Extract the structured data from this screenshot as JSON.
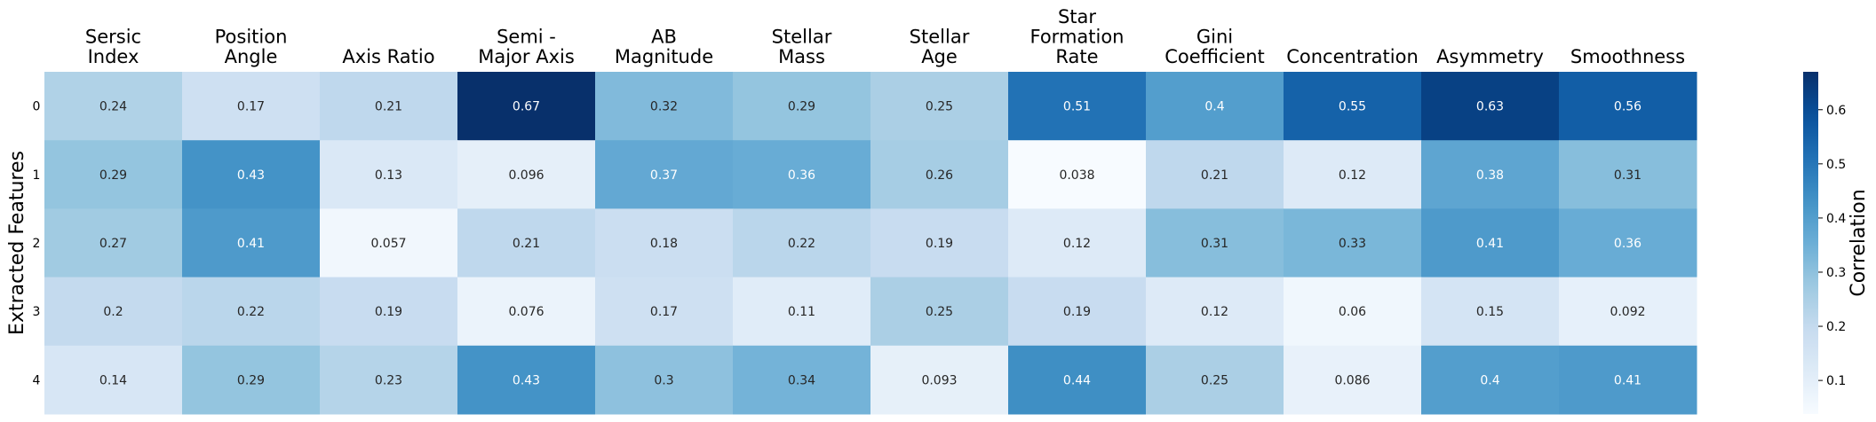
{
  "chart_data": {
    "type": "heatmap",
    "title": "",
    "xlabel": "",
    "ylabel": "Extracted Features",
    "columns": [
      [
        "Sersic",
        "Index"
      ],
      [
        "Position",
        "Angle"
      ],
      [
        "Axis Ratio"
      ],
      [
        "Semi -",
        "Major Axis"
      ],
      [
        "AB",
        "Magnitude"
      ],
      [
        "Stellar",
        "Mass"
      ],
      [
        "Stellar",
        "Age"
      ],
      [
        "Star",
        "Formation",
        "Rate"
      ],
      [
        "Gini",
        "Coefficient"
      ],
      [
        "Concentration"
      ],
      [
        "Asymmetry"
      ],
      [
        "Smoothness"
      ]
    ],
    "rows": [
      "0",
      "1",
      "2",
      "3",
      "4"
    ],
    "values": [
      [
        0.24,
        0.17,
        0.21,
        0.67,
        0.32,
        0.29,
        0.25,
        0.51,
        0.4,
        0.55,
        0.63,
        0.56
      ],
      [
        0.29,
        0.43,
        0.13,
        0.096,
        0.37,
        0.36,
        0.26,
        0.038,
        0.21,
        0.12,
        0.38,
        0.31
      ],
      [
        0.27,
        0.41,
        0.057,
        0.21,
        0.18,
        0.22,
        0.19,
        0.12,
        0.31,
        0.33,
        0.41,
        0.36
      ],
      [
        0.2,
        0.22,
        0.19,
        0.076,
        0.17,
        0.11,
        0.25,
        0.19,
        0.12,
        0.06,
        0.15,
        0.092
      ],
      [
        0.14,
        0.29,
        0.23,
        0.43,
        0.3,
        0.34,
        0.093,
        0.44,
        0.25,
        0.086,
        0.4,
        0.41
      ]
    ],
    "colormap": "Blues",
    "vmin": 0.038,
    "vmax": 0.67,
    "colorbar": {
      "label": "Correlation",
      "ticks": [
        0.1,
        0.2,
        0.3,
        0.4,
        0.5,
        0.6
      ]
    }
  }
}
